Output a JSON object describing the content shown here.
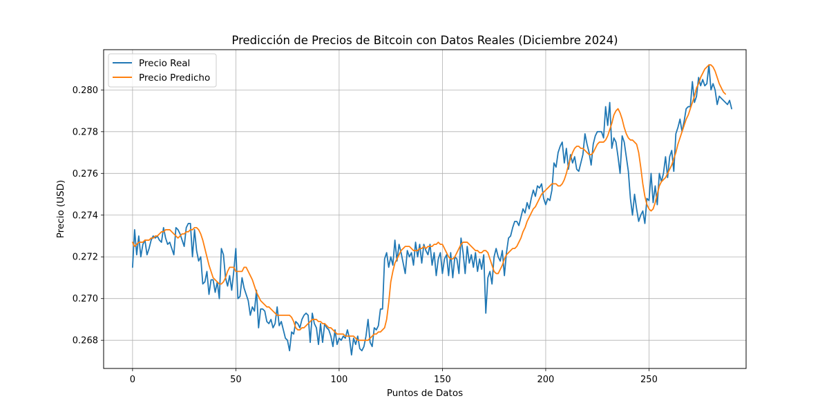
{
  "chart_data": {
    "type": "line",
    "title": "Predicción de Precios de Bitcoin con Datos Reales (Diciembre 2024)",
    "xlabel": "Puntos de Datos",
    "ylabel": "Precio (USD)",
    "xlim": [
      -14,
      297
    ],
    "ylim": [
      0.26665,
      0.28193
    ],
    "xticks": [
      0,
      50,
      100,
      150,
      200,
      250
    ],
    "yticks": [
      0.268,
      0.27,
      0.272,
      0.274,
      0.276,
      0.278,
      0.28
    ],
    "ytick_labels": [
      "0.268",
      "0.270",
      "0.272",
      "0.274",
      "0.276",
      "0.278",
      "0.280"
    ],
    "grid": true,
    "legend_position": "top-left",
    "series": [
      {
        "name": "Precio Real",
        "color": "#1f77b4",
        "values": [
          0.2715,
          0.2733,
          0.2721,
          0.273,
          0.272,
          0.2726,
          0.2728,
          0.2721,
          0.2724,
          0.2728,
          0.273,
          0.2729,
          0.273,
          0.2728,
          0.2727,
          0.2734,
          0.2729,
          0.2726,
          0.2727,
          0.2724,
          0.2721,
          0.2734,
          0.2733,
          0.2731,
          0.2728,
          0.2725,
          0.2734,
          0.2736,
          0.2736,
          0.272,
          0.2733,
          0.2723,
          0.2718,
          0.272,
          0.2707,
          0.2708,
          0.2713,
          0.2702,
          0.2709,
          0.2709,
          0.2703,
          0.2708,
          0.27,
          0.2724,
          0.2721,
          0.271,
          0.2706,
          0.2711,
          0.2704,
          0.2713,
          0.2724,
          0.27,
          0.2701,
          0.271,
          0.2705,
          0.2702,
          0.2699,
          0.2692,
          0.2696,
          0.2694,
          0.2704,
          0.2686,
          0.2695,
          0.2695,
          0.2694,
          0.2689,
          0.2688,
          0.269,
          0.2686,
          0.2688,
          0.2696,
          0.2687,
          0.2689,
          0.2685,
          0.2681,
          0.268,
          0.2675,
          0.2684,
          0.2683,
          0.2689,
          0.2688,
          0.2686,
          0.269,
          0.2692,
          0.2693,
          0.2692,
          0.2679,
          0.2693,
          0.2688,
          0.2686,
          0.2678,
          0.2688,
          0.2679,
          0.2688,
          0.2686,
          0.2685,
          0.2682,
          0.2677,
          0.2685,
          0.2678,
          0.2681,
          0.268,
          0.2682,
          0.2681,
          0.2685,
          0.2681,
          0.2673,
          0.2681,
          0.2678,
          0.2682,
          0.2676,
          0.2675,
          0.2677,
          0.2682,
          0.269,
          0.2679,
          0.2677,
          0.2686,
          0.2685,
          0.2687,
          0.2695,
          0.2695,
          0.2719,
          0.2722,
          0.2715,
          0.272,
          0.2716,
          0.2728,
          0.2718,
          0.2726,
          0.2722,
          0.2717,
          0.2712,
          0.2723,
          0.272,
          0.2722,
          0.2716,
          0.2727,
          0.272,
          0.2726,
          0.2717,
          0.2726,
          0.2723,
          0.2721,
          0.2726,
          0.2716,
          0.2722,
          0.2711,
          0.2719,
          0.2722,
          0.2712,
          0.2719,
          0.2721,
          0.2711,
          0.2722,
          0.271,
          0.272,
          0.2719,
          0.2712,
          0.2729,
          0.2722,
          0.2712,
          0.2725,
          0.2717,
          0.2721,
          0.2715,
          0.2722,
          0.2713,
          0.2719,
          0.2714,
          0.2721,
          0.2693,
          0.271,
          0.2713,
          0.2707,
          0.272,
          0.2724,
          0.272,
          0.2718,
          0.2723,
          0.2711,
          0.2722,
          0.2729,
          0.273,
          0.2734,
          0.2737,
          0.2737,
          0.2735,
          0.2739,
          0.2743,
          0.2741,
          0.2746,
          0.2743,
          0.2748,
          0.2752,
          0.2749,
          0.2754,
          0.2753,
          0.2755,
          0.2748,
          0.2745,
          0.2748,
          0.2747,
          0.2752,
          0.2765,
          0.2763,
          0.277,
          0.2773,
          0.2775,
          0.2765,
          0.2772,
          0.2762,
          0.2769,
          0.2765,
          0.2768,
          0.2762,
          0.2761,
          0.2765,
          0.2769,
          0.2779,
          0.2774,
          0.277,
          0.2764,
          0.2774,
          0.2778,
          0.278,
          0.278,
          0.278,
          0.2777,
          0.2792,
          0.2783,
          0.2794,
          0.2772,
          0.2777,
          0.2775,
          0.2768,
          0.276,
          0.2778,
          0.2775,
          0.2768,
          0.2761,
          0.2748,
          0.274,
          0.275,
          0.2743,
          0.2737,
          0.274,
          0.2742,
          0.2736,
          0.2748,
          0.2747,
          0.276,
          0.2746,
          0.2754,
          0.2745,
          0.276,
          0.2756,
          0.276,
          0.2768,
          0.2758,
          0.2768,
          0.2771,
          0.2761,
          0.2779,
          0.2782,
          0.2786,
          0.278,
          0.2785,
          0.2791,
          0.2792,
          0.2792,
          0.2804,
          0.2794,
          0.2797,
          0.2806,
          0.2802,
          0.2805,
          0.2802,
          0.2803,
          0.2812,
          0.28,
          0.2803,
          0.28,
          0.2793,
          0.2797,
          0.2796,
          0.2795,
          0.2794,
          0.2793,
          0.2795,
          0.2791
        ]
      },
      {
        "name": "Precio Predicho",
        "color": "#ff7f0e",
        "values": [
          0.2727,
          0.2725,
          0.2726,
          0.2727,
          0.2727,
          0.2727,
          0.2728,
          0.2728,
          0.2728,
          0.2729,
          0.2729,
          0.273,
          0.273,
          0.2731,
          0.2732,
          0.2732,
          0.2733,
          0.2733,
          0.2733,
          0.2732,
          0.2731,
          0.273,
          0.2729,
          0.273,
          0.2731,
          0.2731,
          0.2732,
          0.2732,
          0.2733,
          0.2733,
          0.2734,
          0.2734,
          0.2733,
          0.2731,
          0.2728,
          0.2724,
          0.272,
          0.2716,
          0.2713,
          0.271,
          0.2709,
          0.2708,
          0.2707,
          0.2707,
          0.2708,
          0.271,
          0.2713,
          0.2715,
          0.2715,
          0.2715,
          0.2713,
          0.2713,
          0.2713,
          0.2713,
          0.2715,
          0.2715,
          0.2713,
          0.2711,
          0.2709,
          0.2706,
          0.2703,
          0.2701,
          0.2699,
          0.2698,
          0.2697,
          0.2696,
          0.2696,
          0.2695,
          0.2694,
          0.2693,
          0.2692,
          0.2692,
          0.2692,
          0.2692,
          0.2692,
          0.2692,
          0.2692,
          0.2691,
          0.2689,
          0.2686,
          0.2685,
          0.2685,
          0.2686,
          0.2686,
          0.2687,
          0.2688,
          0.2689,
          0.269,
          0.269,
          0.269,
          0.2689,
          0.2689,
          0.2688,
          0.2688,
          0.2687,
          0.2686,
          0.2686,
          0.2685,
          0.2684,
          0.2683,
          0.2683,
          0.2683,
          0.2683,
          0.2682,
          0.2682,
          0.2682,
          0.2682,
          0.2682,
          0.2681,
          0.268,
          0.268,
          0.268,
          0.268,
          0.268,
          0.268,
          0.2681,
          0.2682,
          0.2683,
          0.2683,
          0.2684,
          0.2684,
          0.2685,
          0.2686,
          0.269,
          0.2698,
          0.2708,
          0.2713,
          0.2717,
          0.2719,
          0.2721,
          0.2723,
          0.2724,
          0.2725,
          0.2725,
          0.2725,
          0.2724,
          0.2723,
          0.2723,
          0.2723,
          0.2724,
          0.2724,
          0.2725,
          0.2724,
          0.2725,
          0.2725,
          0.2725,
          0.2726,
          0.2726,
          0.2727,
          0.2726,
          0.2726,
          0.2724,
          0.2722,
          0.272,
          0.2719,
          0.2719,
          0.272,
          0.2722,
          0.2724,
          0.2726,
          0.2727,
          0.2727,
          0.2727,
          0.2726,
          0.2725,
          0.2724,
          0.2723,
          0.2723,
          0.2722,
          0.2722,
          0.2723,
          0.2723,
          0.2722,
          0.2719,
          0.2716,
          0.2713,
          0.2712,
          0.2712,
          0.2714,
          0.2716,
          0.2719,
          0.2721,
          0.2722,
          0.2723,
          0.2724,
          0.2724,
          0.2725,
          0.2727,
          0.2729,
          0.2732,
          0.2734,
          0.2737,
          0.2739,
          0.2741,
          0.2743,
          0.2744,
          0.2746,
          0.2748,
          0.275,
          0.2751,
          0.2752,
          0.2753,
          0.2754,
          0.2755,
          0.2755,
          0.2755,
          0.2754,
          0.2754,
          0.2755,
          0.2757,
          0.276,
          0.2764,
          0.2767,
          0.277,
          0.2772,
          0.2773,
          0.2773,
          0.2772,
          0.2772,
          0.2771,
          0.277,
          0.2769,
          0.2769,
          0.277,
          0.2772,
          0.2774,
          0.2775,
          0.2775,
          0.2775,
          0.2776,
          0.2778,
          0.2781,
          0.2784,
          0.2788,
          0.279,
          0.2791,
          0.2789,
          0.2786,
          0.2782,
          0.2779,
          0.2777,
          0.2776,
          0.2776,
          0.2775,
          0.2774,
          0.277,
          0.2763,
          0.2755,
          0.2749,
          0.2745,
          0.2743,
          0.2742,
          0.2743,
          0.2746,
          0.275,
          0.2754,
          0.2756,
          0.2757,
          0.2758,
          0.276,
          0.2762,
          0.2764,
          0.2767,
          0.277,
          0.2774,
          0.2777,
          0.278,
          0.2783,
          0.2786,
          0.2788,
          0.2791,
          0.2794,
          0.2797,
          0.2801,
          0.2803,
          0.2806,
          0.2808,
          0.281,
          0.2811,
          0.2812,
          0.2812,
          0.2811,
          0.2809,
          0.2806,
          0.2803,
          0.2801,
          0.2799,
          0.2798
        ]
      }
    ]
  }
}
